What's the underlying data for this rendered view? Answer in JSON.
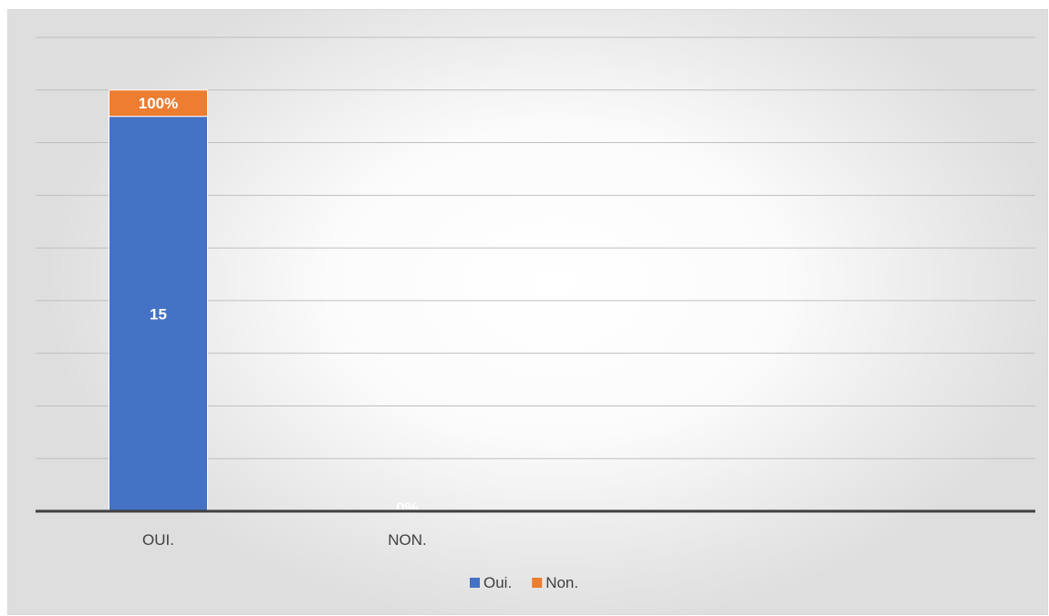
{
  "chart_data": {
    "type": "bar",
    "stacked": true,
    "categories": [
      "OUI.",
      "NON."
    ],
    "series": [
      {
        "name": "Oui.",
        "color": "#4472C4",
        "values": [
          15,
          0
        ],
        "labels": [
          "15",
          ""
        ]
      },
      {
        "name": "Non.",
        "color": "#ED7D31",
        "values": [
          1,
          0
        ],
        "labels": [
          "100%",
          "0%"
        ]
      }
    ],
    "title": "",
    "xlabel": "",
    "ylabel": "",
    "ylim": [
      0,
      18
    ],
    "grid": true,
    "y_tick_labels_shown": false,
    "legend_position": "bottom"
  }
}
